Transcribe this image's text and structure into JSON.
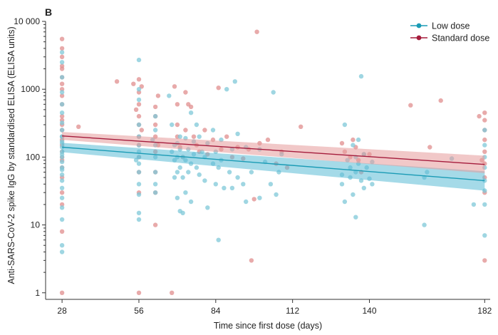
{
  "chart_data": {
    "type": "scatter",
    "panel_label": "B",
    "xlabel": "Time since first dose (days)",
    "ylabel": "Anti-SARS-CoV-2 spike IgG by standardised ELISA (ELISA units)",
    "x_ticks": [
      28,
      56,
      84,
      112,
      140,
      182
    ],
    "x_tick_labels": [
      "28",
      "56",
      "84",
      "112",
      "140",
      "182"
    ],
    "xlim": [
      22,
      184
    ],
    "y_scale": "log",
    "ylim": [
      0.8,
      10000
    ],
    "y_ticks": [
      1,
      10,
      100,
      1000,
      10000
    ],
    "y_tick_labels": [
      "1",
      "10",
      "100",
      "1000",
      "10 000"
    ],
    "legend_position": "top-right",
    "series": [
      {
        "name": "Low dose",
        "color": "#1a9bb5",
        "point_color": "#7fc8d8",
        "fit": {
          "x": [
            28,
            182
          ],
          "y": [
            140,
            45
          ]
        },
        "band": {
          "x": [
            28,
            182
          ],
          "lower": [
            118,
            32
          ],
          "upper": [
            162,
            62
          ]
        },
        "points": [
          [
            28,
            1500
          ],
          [
            28,
            900
          ],
          [
            28,
            600
          ],
          [
            28,
            450
          ],
          [
            28,
            320
          ],
          [
            28,
            250
          ],
          [
            28,
            200
          ],
          [
            28,
            170
          ],
          [
            28,
            140
          ],
          [
            28,
            120
          ],
          [
            28,
            100
          ],
          [
            28,
            85
          ],
          [
            28,
            70
          ],
          [
            28,
            55
          ],
          [
            28,
            45
          ],
          [
            28,
            35
          ],
          [
            28,
            25
          ],
          [
            28,
            18
          ],
          [
            28,
            12
          ],
          [
            28,
            5
          ],
          [
            28,
            4
          ],
          [
            28,
            3500
          ],
          [
            28,
            2500
          ],
          [
            28,
            200
          ],
          [
            28,
            160
          ],
          [
            28,
            110
          ],
          [
            28,
            65
          ],
          [
            56,
            2700
          ],
          [
            56,
            1000
          ],
          [
            56,
            700
          ],
          [
            56,
            300
          ],
          [
            56,
            200
          ],
          [
            56,
            150
          ],
          [
            56,
            120
          ],
          [
            56,
            100
          ],
          [
            56,
            80
          ],
          [
            56,
            60
          ],
          [
            56,
            40
          ],
          [
            56,
            28
          ],
          [
            56,
            15
          ],
          [
            56,
            12
          ],
          [
            55,
            90
          ],
          [
            62,
            400
          ],
          [
            62,
            250
          ],
          [
            62,
            150
          ],
          [
            62,
            100
          ],
          [
            62,
            60
          ],
          [
            62,
            40
          ],
          [
            62,
            30
          ],
          [
            61,
            180
          ],
          [
            67,
            800
          ],
          [
            68,
            300
          ],
          [
            68,
            120
          ],
          [
            69,
            150
          ],
          [
            69,
            90
          ],
          [
            69,
            50
          ],
          [
            70,
            160
          ],
          [
            70,
            100
          ],
          [
            70,
            60
          ],
          [
            70,
            25
          ],
          [
            71,
            200
          ],
          [
            71,
            130
          ],
          [
            71,
            70
          ],
          [
            71,
            16
          ],
          [
            72,
            100
          ],
          [
            72,
            50
          ],
          [
            72,
            15
          ],
          [
            73,
            190
          ],
          [
            73,
            90
          ],
          [
            73,
            30
          ],
          [
            74,
            130
          ],
          [
            74,
            60
          ],
          [
            75,
            450
          ],
          [
            75,
            80
          ],
          [
            75,
            22
          ],
          [
            76,
            170
          ],
          [
            76,
            110
          ],
          [
            77,
            300
          ],
          [
            77,
            70
          ],
          [
            78,
            200
          ],
          [
            78,
            55
          ],
          [
            79,
            120
          ],
          [
            80,
            100
          ],
          [
            80,
            45
          ],
          [
            81,
            160
          ],
          [
            81,
            18
          ],
          [
            83,
            250
          ],
          [
            83,
            80
          ],
          [
            84,
            120
          ],
          [
            84,
            40
          ],
          [
            85,
            6
          ],
          [
            85,
            70
          ],
          [
            86,
            180
          ],
          [
            86,
            90
          ],
          [
            87,
            35
          ],
          [
            88,
            1000
          ],
          [
            89,
            60
          ],
          [
            90,
            130
          ],
          [
            90,
            35
          ],
          [
            91,
            1300
          ],
          [
            92,
            220
          ],
          [
            92,
            50
          ],
          [
            94,
            40
          ],
          [
            95,
            140
          ],
          [
            95,
            22
          ],
          [
            97,
            60
          ],
          [
            100,
            130
          ],
          [
            100,
            25
          ],
          [
            102,
            85
          ],
          [
            104,
            40
          ],
          [
            105,
            900
          ],
          [
            106,
            28
          ],
          [
            107,
            60
          ],
          [
            108,
            110
          ],
          [
            130,
            55
          ],
          [
            130,
            40
          ],
          [
            131,
            300
          ],
          [
            131,
            22
          ],
          [
            132,
            90
          ],
          [
            133,
            70
          ],
          [
            133,
            50
          ],
          [
            134,
            150
          ],
          [
            134,
            28
          ],
          [
            135,
            100
          ],
          [
            135,
            60
          ],
          [
            135,
            13
          ],
          [
            136,
            180
          ],
          [
            136,
            80
          ],
          [
            137,
            1550
          ],
          [
            137,
            45
          ],
          [
            138,
            110
          ],
          [
            138,
            35
          ],
          [
            139,
            70
          ],
          [
            140,
            48
          ],
          [
            141,
            85
          ],
          [
            141,
            40
          ],
          [
            160,
            10
          ],
          [
            160,
            50
          ],
          [
            161,
            60
          ],
          [
            170,
            95
          ],
          [
            178,
            20
          ],
          [
            182,
            250
          ],
          [
            182,
            150
          ],
          [
            182,
            100
          ],
          [
            182,
            70
          ],
          [
            182,
            45
          ],
          [
            182,
            32
          ],
          [
            182,
            20
          ],
          [
            182,
            7
          ]
        ]
      },
      {
        "name": "Standard dose",
        "color": "#a51c3c",
        "point_color": "#e08e8e",
        "fit": {
          "x": [
            28,
            182
          ],
          "y": [
            205,
            78
          ]
        },
        "band": {
          "x": [
            28,
            182
          ],
          "lower": [
            180,
            58
          ],
          "upper": [
            235,
            105
          ]
        },
        "points": [
          [
            28,
            5500
          ],
          [
            28,
            4000
          ],
          [
            28,
            3000
          ],
          [
            28,
            2000
          ],
          [
            28,
            1500
          ],
          [
            28,
            1000
          ],
          [
            28,
            800
          ],
          [
            28,
            600
          ],
          [
            28,
            400
          ],
          [
            28,
            300
          ],
          [
            28,
            250
          ],
          [
            28,
            200
          ],
          [
            28,
            150
          ],
          [
            28,
            120
          ],
          [
            28,
            90
          ],
          [
            28,
            70
          ],
          [
            28,
            50
          ],
          [
            28,
            30
          ],
          [
            28,
            20
          ],
          [
            28,
            8
          ],
          [
            28,
            1
          ],
          [
            28,
            2200
          ],
          [
            28,
            1200
          ],
          [
            28,
            350
          ],
          [
            28,
            180
          ],
          [
            28,
            100
          ],
          [
            34,
            280
          ],
          [
            48,
            1300
          ],
          [
            54,
            1200
          ],
          [
            55,
            500
          ],
          [
            56,
            1400
          ],
          [
            56,
            900
          ],
          [
            56,
            600
          ],
          [
            56,
            400
          ],
          [
            56,
            300
          ],
          [
            56,
            200
          ],
          [
            56,
            150
          ],
          [
            56,
            100
          ],
          [
            56,
            60
          ],
          [
            56,
            30
          ],
          [
            56,
            1
          ],
          [
            57,
            1100
          ],
          [
            57,
            250
          ],
          [
            62,
            550
          ],
          [
            62,
            400
          ],
          [
            62,
            300
          ],
          [
            62,
            200
          ],
          [
            62,
            120
          ],
          [
            62,
            60
          ],
          [
            62,
            30
          ],
          [
            62,
            10
          ],
          [
            63,
            800
          ],
          [
            63,
            150
          ],
          [
            68,
            1
          ],
          [
            69,
            1100
          ],
          [
            70,
            600
          ],
          [
            70,
            300
          ],
          [
            70,
            200
          ],
          [
            71,
            140
          ],
          [
            72,
            100
          ],
          [
            73,
            900
          ],
          [
            73,
            250
          ],
          [
            74,
            600
          ],
          [
            75,
            550
          ],
          [
            76,
            200
          ],
          [
            77,
            150
          ],
          [
            78,
            120
          ],
          [
            80,
            250
          ],
          [
            81,
            110
          ],
          [
            83,
            180
          ],
          [
            85,
            1050
          ],
          [
            86,
            130
          ],
          [
            88,
            200
          ],
          [
            90,
            100
          ],
          [
            92,
            140
          ],
          [
            94,
            95
          ],
          [
            96,
            130
          ],
          [
            97,
            3
          ],
          [
            98,
            24
          ],
          [
            99,
            7000
          ],
          [
            100,
            160
          ],
          [
            103,
            180
          ],
          [
            106,
            80
          ],
          [
            108,
            120
          ],
          [
            110,
            70
          ],
          [
            115,
            280
          ],
          [
            130,
            160
          ],
          [
            131,
            120
          ],
          [
            133,
            100
          ],
          [
            134,
            180
          ],
          [
            135,
            140
          ],
          [
            136,
            90
          ],
          [
            137,
            60
          ],
          [
            138,
            110
          ],
          [
            140,
            110
          ],
          [
            155,
            580
          ],
          [
            162,
            140
          ],
          [
            166,
            680
          ],
          [
            180,
            400
          ],
          [
            182,
            450
          ],
          [
            182,
            350
          ],
          [
            182,
            250
          ],
          [
            182,
            180
          ],
          [
            182,
            120
          ],
          [
            182,
            80
          ],
          [
            182,
            50
          ],
          [
            182,
            30
          ],
          [
            182,
            3
          ],
          [
            181,
            90
          ]
        ]
      }
    ]
  }
}
